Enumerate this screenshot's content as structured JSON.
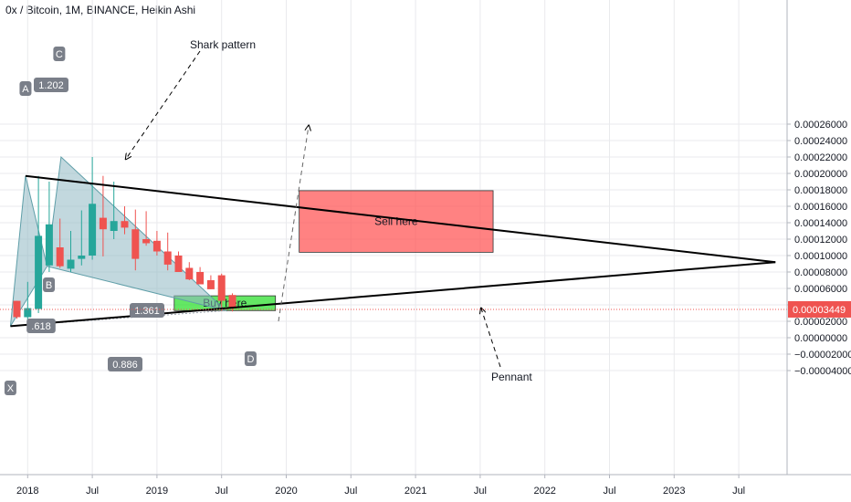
{
  "header": {
    "title": "0x / Bitcoin, 1M, BINANCE, Heikin Ashi"
  },
  "chart_data": {
    "type": "candlestick",
    "symbol": "0x / Bitcoin",
    "interval": "1M",
    "exchange": "BINANCE",
    "style": "Heikin Ashi",
    "ylim": [
      -5e-05,
      0.000265
    ],
    "x_ticks": [
      "2018",
      "Jul",
      "2019",
      "Jul",
      "2020",
      "Jul",
      "2021",
      "Jul",
      "2022",
      "Jul",
      "2023",
      "Jul"
    ],
    "y_ticks": [
      "0.00026000",
      "0.00024000",
      "0.00022000",
      "0.00020000",
      "0.00018000",
      "0.00016000",
      "0.00014000",
      "0.00012000",
      "0.00010000",
      "0.00008000",
      "0.00006000",
      "0.00004000",
      "0.00002000",
      "0.00000000",
      "−0.00002000",
      "−0.00004000"
    ],
    "y_tick_values": [
      0.00026,
      0.00024,
      0.00022,
      0.0002,
      0.00018,
      0.00016,
      0.00014,
      0.00012,
      0.0001,
      8e-05,
      6e-05,
      4e-05,
      2e-05,
      0,
      -2e-05,
      -4e-05
    ],
    "last_price": {
      "label": "0.00003449",
      "value": 3.449e-05
    },
    "candles": [
      {
        "t": 0,
        "o": 4.49e-05,
        "h": 4.49e-05,
        "l": 2.31e-05,
        "c": 2.5e-05
      },
      {
        "t": 1,
        "o": 2.5e-05,
        "h": 6.8e-05,
        "l": 1.6e-05,
        "c": 3.6e-05
      },
      {
        "t": 2,
        "o": 3.5e-05,
        "h": 0.000197,
        "l": 3e-05,
        "c": 0.000124
      },
      {
        "t": 3,
        "o": 8.8e-05,
        "h": 0.00019,
        "l": 8e-05,
        "c": 0.000138
      },
      {
        "t": 4,
        "o": 0.00011,
        "h": 0.000145,
        "l": 8.5e-05,
        "c": 8.7e-05
      },
      {
        "t": 5,
        "o": 8.4e-05,
        "h": 0.00013,
        "l": 8e-05,
        "c": 9.5e-05
      },
      {
        "t": 6,
        "o": 9.6e-05,
        "h": 0.000155,
        "l": 8.8e-05,
        "c": 0.0001
      },
      {
        "t": 7,
        "o": 0.0001,
        "h": 0.00022,
        "l": 9.5e-05,
        "c": 0.000163
      },
      {
        "t": 8,
        "o": 0.000146,
        "h": 0.000197,
        "l": 9.9e-05,
        "c": 0.000132
      },
      {
        "t": 9,
        "o": 0.00013,
        "h": 0.00019,
        "l": 0.00012,
        "c": 0.000142
      },
      {
        "t": 10,
        "o": 0.000142,
        "h": 0.00016,
        "l": 0.000126,
        "c": 0.000134
      },
      {
        "t": 11,
        "o": 0.000132,
        "h": 0.000156,
        "l": 8.2e-05,
        "c": 9.6e-05
      },
      {
        "t": 12,
        "o": 0.00012,
        "h": 0.000154,
        "l": 0.000112,
        "c": 0.000115
      },
      {
        "t": 13,
        "o": 0.000118,
        "h": 0.00013,
        "l": 0.0001,
        "c": 0.000105
      },
      {
        "t": 14,
        "o": 0.000105,
        "h": 0.000128,
        "l": 8.2e-05,
        "c": 8.9e-05
      },
      {
        "t": 15,
        "o": 0.0001,
        "h": 0.000105,
        "l": 8e-05,
        "c": 8e-05
      },
      {
        "t": 16,
        "o": 8.5e-05,
        "h": 9.2e-05,
        "l": 7e-05,
        "c": 7.1e-05
      },
      {
        "t": 17,
        "o": 8e-05,
        "h": 8.6e-05,
        "l": 6.5e-05,
        "c": 6.5e-05
      },
      {
        "t": 18,
        "o": 7e-05,
        "h": 7.6e-05,
        "l": 5.9e-05,
        "c": 5.9e-05
      },
      {
        "t": 19,
        "o": 7.6e-05,
        "h": 7.8e-05,
        "l": 3.3e-05,
        "c": 4.5e-05
      },
      {
        "t": 20,
        "o": 5.2e-05,
        "h": 5.4e-05,
        "l": 3.2e-05,
        "c": 3.6e-05
      }
    ],
    "harmonic_pattern": {
      "name": "Shark pattern",
      "points": [
        {
          "label": "X",
          "t": -0.6,
          "v": 1.4e-05
        },
        {
          "label": "A",
          "t": 0.8,
          "v": 0.000197
        },
        {
          "label": "B",
          "t": 2.8,
          "v": 8.7e-05
        },
        {
          "label": "C",
          "t": 4.1,
          "v": 0.00022
        },
        {
          "label": "D",
          "t": 19.4,
          "v": 3.3e-05
        }
      ],
      "ratios": [
        "1.202",
        "1.361",
        "0.886",
        ".618"
      ]
    },
    "pennant": {
      "name": "Pennant",
      "upper": [
        {
          "t": 0.8,
          "v": 0.000197
        },
        {
          "t": 70.4,
          "v": 9.2e-05
        }
      ],
      "lower": [
        {
          "t": -0.6,
          "v": 1.4e-05
        },
        {
          "t": 70.4,
          "v": 9.2e-05
        }
      ]
    },
    "zones": [
      {
        "label": "Buy here",
        "t0": 14.6,
        "t1": 24.0,
        "v0": 3.3e-05,
        "v1": 5.1e-05,
        "color": "#22dd22"
      },
      {
        "label": "Sell here",
        "t0": 26.2,
        "t1": 44.2,
        "v0": 0.000104,
        "v1": 0.000179,
        "color": "#ff4d4d"
      }
    ],
    "annotations": [
      {
        "text": "Shark pattern"
      },
      {
        "text": "Pennant"
      }
    ]
  },
  "colors": {
    "up": "#26a69a",
    "down": "#ef5350",
    "grid": "#e9eaed",
    "pattern_fill": "#8fb8c2",
    "pattern_line": "#5f9ea8",
    "pennant_line": "#000000",
    "price_line": "#ef5350",
    "label_bg": "#7a7f89"
  }
}
